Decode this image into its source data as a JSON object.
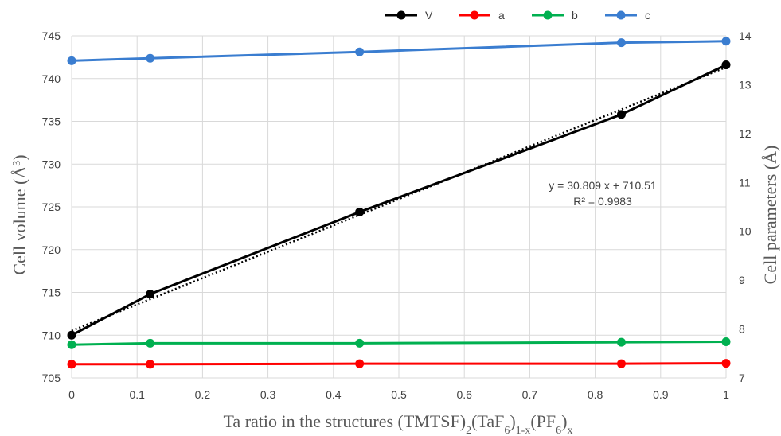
{
  "chart_data": {
    "type": "line",
    "x": [
      0,
      0.12,
      0.44,
      0.84,
      1
    ],
    "series": [
      {
        "name": "V",
        "axis": "left",
        "color": "#000000",
        "values": [
          710.0,
          714.8,
          724.4,
          735.8,
          741.6
        ]
      },
      {
        "name": "a",
        "axis": "right",
        "color": "#ff0000",
        "values": [
          7.28,
          7.28,
          7.29,
          7.29,
          7.3
        ]
      },
      {
        "name": "b",
        "axis": "right",
        "color": "#00b050",
        "values": [
          7.68,
          7.71,
          7.71,
          7.73,
          7.74
        ]
      },
      {
        "name": "c",
        "axis": "right",
        "color": "#3a7dd0",
        "values": [
          13.49,
          13.54,
          13.67,
          13.86,
          13.89
        ]
      }
    ],
    "trendline": {
      "series": "V",
      "style": "dotted",
      "slope": 30.809,
      "intercept": 710.51
    },
    "annotation": {
      "line1": "y = 30.809 x + 710.51",
      "line2": "R² = 0.9983"
    },
    "xlabel": "Ta ratio in the structures (TMTSF)",
    "xlabel_parts": {
      "main": "Ta ratio in the structures (TMTSF)",
      "sub1": "2",
      "mid1": "(TaF",
      "sub2": "6",
      "mid2": ")",
      "sub3": "1-x",
      "mid3": "(PF",
      "sub4": "6",
      "mid4": ")",
      "sub5": "x"
    },
    "ylabel_left": {
      "text": "Cell volume (Å",
      "sup": "3",
      "end": ")"
    },
    "ylabel_right": "Cell parameters (Å)",
    "xlim": [
      0,
      1
    ],
    "ylim_left": [
      705,
      745
    ],
    "ylim_right": [
      7,
      14
    ],
    "x_ticks": [
      "0",
      "0.1",
      "0.2",
      "0.3",
      "0.4",
      "0.5",
      "0.6",
      "0.7",
      "0.8",
      "0.9",
      "1"
    ],
    "y_left_ticks": [
      "705",
      "710",
      "715",
      "720",
      "725",
      "730",
      "735",
      "740",
      "745"
    ],
    "y_right_ticks": [
      "7",
      "8",
      "9",
      "10",
      "11",
      "12",
      "13",
      "14"
    ],
    "grid": true,
    "legend_position": "top-center"
  }
}
